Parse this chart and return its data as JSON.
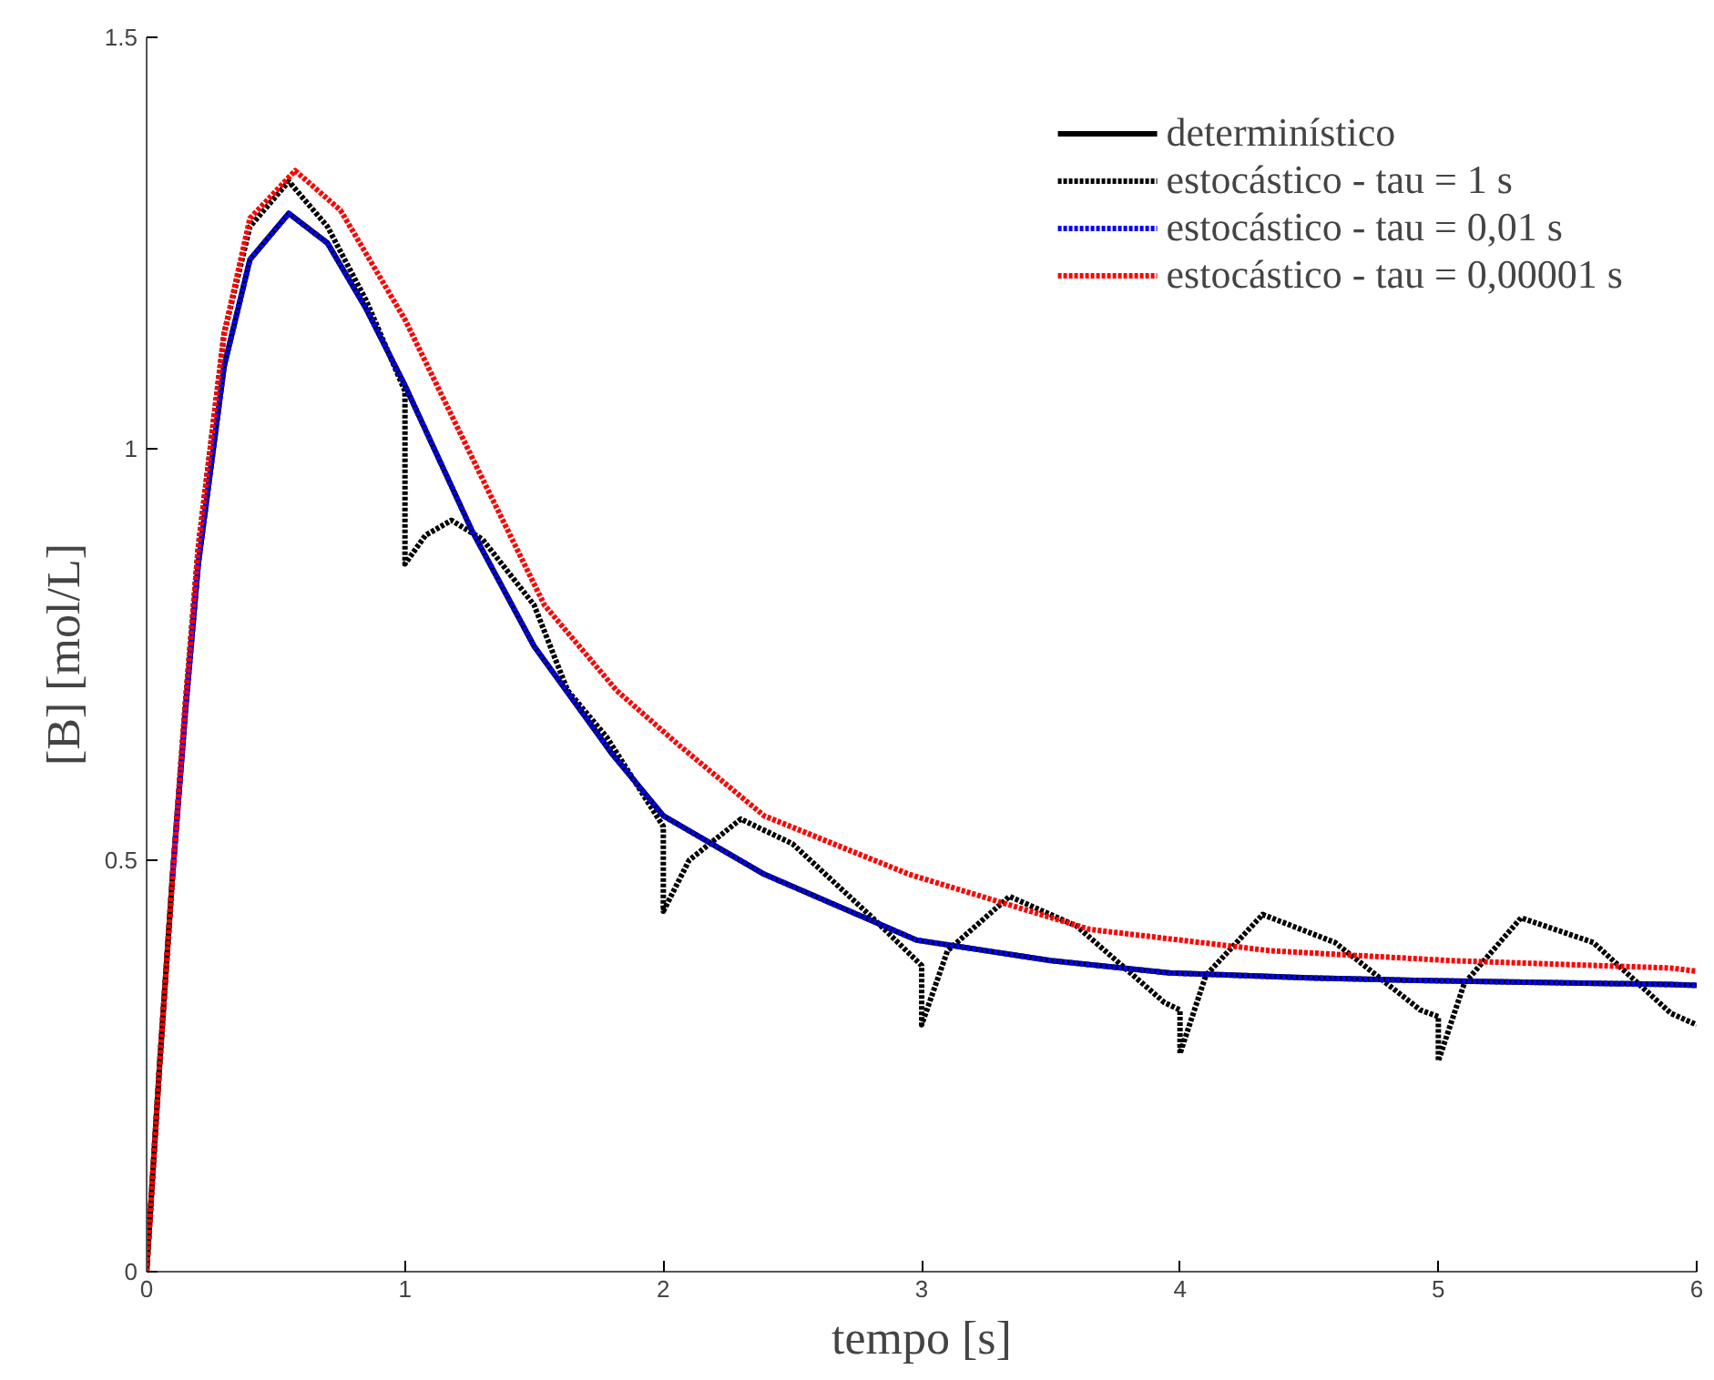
{
  "chart_data": {
    "type": "line",
    "xlabel": "tempo [s]",
    "ylabel": "[B] [mol/L]",
    "xlim": [
      0,
      6
    ],
    "ylim": [
      0,
      1.5
    ],
    "xticks": [
      0,
      1,
      2,
      3,
      4,
      5,
      6
    ],
    "yticks": [
      0,
      0.5,
      1,
      1.5
    ],
    "grid": false,
    "legend": "top right",
    "marker": "none",
    "series": [
      {
        "name": "determinístico",
        "color": "#000000",
        "line_style": "solid",
        "x": [
          0,
          0.05,
          0.1,
          0.15,
          0.2,
          0.3,
          0.4,
          0.55,
          0.7,
          0.85,
          1.0,
          1.26,
          1.5,
          1.8,
          2.0,
          2.39,
          2.98,
          3.5,
          3.96,
          4.5,
          4.91,
          5.5,
          5.9,
          6.0
        ],
        "values": [
          0,
          0.25,
          0.48,
          0.68,
          0.86,
          1.1,
          1.23,
          1.286,
          1.25,
          1.17,
          1.077,
          0.9,
          0.76,
          0.63,
          0.554,
          0.483,
          0.403,
          0.378,
          0.363,
          0.357,
          0.354,
          0.351,
          0.349,
          0.348
        ]
      },
      {
        "name": "estocástico - tau = 1 s",
        "color": "#000000",
        "line_style": "dotted",
        "x": [
          0,
          0.05,
          0.1,
          0.15,
          0.2,
          0.3,
          0.4,
          0.55,
          0.7,
          0.85,
          1.0,
          1.0,
          1.08,
          1.18,
          1.3,
          1.5,
          1.63,
          1.78,
          2.0,
          2.0,
          2.1,
          2.3,
          2.5,
          2.81,
          3.0,
          3.0,
          3.1,
          3.34,
          3.6,
          3.94,
          4.0,
          4.0,
          4.1,
          4.32,
          4.6,
          4.93,
          5.0,
          5.0,
          5.1,
          5.32,
          5.6,
          5.9,
          6.0
        ],
        "values": [
          0,
          0.25,
          0.48,
          0.69,
          0.88,
          1.14,
          1.27,
          1.325,
          1.27,
          1.18,
          1.07,
          0.86,
          0.895,
          0.913,
          0.89,
          0.81,
          0.706,
          0.65,
          0.541,
          0.438,
          0.5,
          0.55,
          0.52,
          0.43,
          0.372,
          0.3,
          0.39,
          0.456,
          0.42,
          0.327,
          0.318,
          0.265,
          0.36,
          0.434,
          0.4,
          0.318,
          0.31,
          0.256,
          0.35,
          0.43,
          0.4,
          0.314,
          0.3
        ]
      },
      {
        "name": "estocástico - tau = 0,01 s",
        "color": "#0000ff",
        "line_style": "dotted",
        "x": [
          0.1,
          0.15,
          0.2,
          0.3,
          0.4,
          0.55,
          0.7,
          0.85,
          1.0,
          1.26,
          1.5,
          1.8,
          2.0,
          2.39,
          2.98,
          3.5,
          3.96,
          4.5,
          4.91,
          5.5,
          5.9,
          6.0
        ],
        "values": [
          0.48,
          0.68,
          0.86,
          1.1,
          1.23,
          1.286,
          1.25,
          1.17,
          1.077,
          0.9,
          0.76,
          0.63,
          0.554,
          0.483,
          0.403,
          0.378,
          0.363,
          0.357,
          0.354,
          0.351,
          0.349,
          0.348
        ]
      },
      {
        "name": "estocástico - tau = 0,00001 s",
        "color": "#ff0000",
        "line_style": "dotted",
        "x": [
          0,
          0.05,
          0.1,
          0.15,
          0.2,
          0.3,
          0.4,
          0.575,
          0.75,
          1.0,
          1.31,
          1.54,
          1.82,
          2.06,
          2.39,
          2.95,
          3.65,
          4.35,
          5.05,
          5.9,
          6.0
        ],
        "values": [
          0,
          0.25,
          0.48,
          0.69,
          0.88,
          1.14,
          1.28,
          1.338,
          1.29,
          1.157,
          0.957,
          0.81,
          0.706,
          0.64,
          0.554,
          0.483,
          0.416,
          0.39,
          0.378,
          0.369,
          0.365
        ]
      }
    ]
  }
}
